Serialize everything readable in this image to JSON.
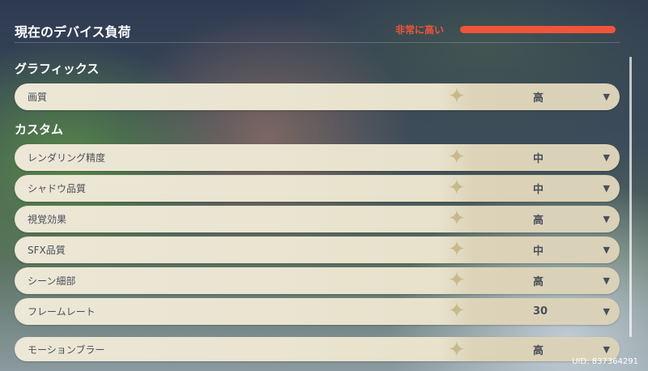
{
  "header": {
    "title": "現在のデバイス負荷",
    "load_label": "非常に高い",
    "load_level_percent": 100,
    "load_color": "#f0543a"
  },
  "sections": [
    {
      "title": "グラフィックス",
      "items": [
        {
          "label": "画質",
          "value": "高"
        }
      ]
    },
    {
      "title": "カスタム",
      "items": [
        {
          "label": "レンダリング精度",
          "value": "中"
        },
        {
          "label": "シャドウ品質",
          "value": "中"
        },
        {
          "label": "視覚効果",
          "value": "高"
        },
        {
          "label": "SFX品質",
          "value": "中"
        },
        {
          "label": "シーン細部",
          "value": "高"
        },
        {
          "label": "フレームレート",
          "value": "30"
        },
        {
          "label": "モーションブラー",
          "value": "高"
        }
      ]
    }
  ],
  "uid": "UID: 837364291",
  "icons": {
    "dropdown": "triangle-down-icon",
    "decoration": "star-icon"
  }
}
